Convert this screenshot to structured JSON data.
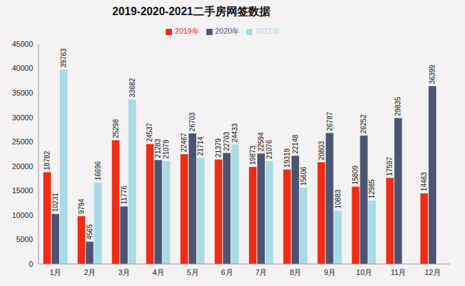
{
  "chart_data": {
    "type": "bar",
    "title": "2019-2020-2021二手房网签数据",
    "categories": [
      "1月",
      "2月",
      "3月",
      "4月",
      "5月",
      "6月",
      "7月",
      "8月",
      "9月",
      "10月",
      "11月",
      "12月"
    ],
    "series": [
      {
        "name": "2019年",
        "color": "#ee2d14",
        "values": [
          18782,
          9794,
          25298,
          24537,
          22467,
          21379,
          19873,
          19319,
          20803,
          15809,
          17597,
          14463
        ]
      },
      {
        "name": "2020年",
        "color": "#4b5573",
        "values": [
          10231,
          4565,
          11776,
          21283,
          26703,
          22703,
          22594,
          22148,
          26787,
          26252,
          29835,
          36399
        ]
      },
      {
        "name": "2021年",
        "color": "#a8dbe6",
        "values": [
          39763,
          16696,
          33682,
          21079,
          21714,
          24433,
          21076,
          15606,
          10883,
          12985,
          null,
          null
        ]
      }
    ],
    "ylim": [
      0,
      45000
    ],
    "yticks": [
      0,
      5000,
      10000,
      15000,
      20000,
      25000,
      30000,
      35000,
      40000,
      45000
    ],
    "grid": false,
    "legend": "top",
    "data_labels": true
  }
}
